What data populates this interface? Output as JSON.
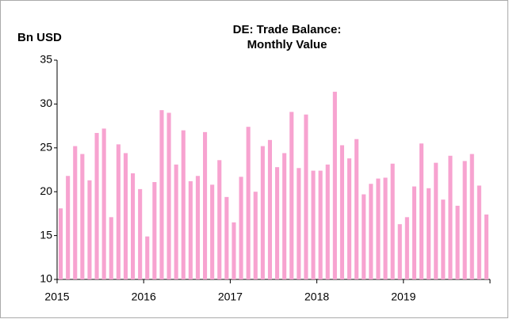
{
  "chart_data": {
    "type": "bar",
    "title": [
      "DE: Trade Balance:",
      "Monthly Value"
    ],
    "y_label": "Bn USD",
    "color": "#f7a3d0",
    "grid": false,
    "categories": [
      "2015",
      null,
      null,
      null,
      null,
      null,
      null,
      null,
      null,
      null,
      null,
      null,
      "2016",
      null,
      null,
      null,
      null,
      null,
      null,
      null,
      null,
      null,
      null,
      null,
      "2017",
      null,
      null,
      null,
      null,
      null,
      null,
      null,
      null,
      null,
      null,
      null,
      "2018",
      null,
      null,
      null,
      null,
      null,
      null,
      null,
      null,
      null,
      null,
      null,
      "2019",
      null,
      null,
      null,
      null,
      null,
      null,
      null,
      null,
      null,
      null,
      null
    ],
    "values": [
      18.1,
      21.8,
      25.2,
      24.3,
      21.3,
      26.7,
      27.2,
      17.1,
      25.4,
      24.4,
      22.1,
      20.3,
      14.9,
      21.1,
      29.3,
      29.0,
      23.1,
      27.0,
      21.2,
      21.8,
      26.8,
      20.8,
      23.6,
      19.4,
      16.5,
      21.7,
      27.4,
      20.0,
      25.2,
      25.9,
      22.8,
      24.4,
      29.1,
      22.7,
      28.8,
      22.4,
      22.4,
      23.1,
      31.4,
      25.3,
      23.8,
      26.0,
      19.7,
      20.9,
      21.5,
      21.6,
      23.2,
      16.3,
      17.1,
      20.6,
      25.5,
      20.4,
      23.3,
      19.1,
      24.1,
      18.4,
      23.5,
      24.3,
      20.7,
      17.4
    ],
    "ylim": [
      10,
      35
    ],
    "yticks": [
      10,
      15,
      20,
      25,
      30,
      35
    ]
  }
}
